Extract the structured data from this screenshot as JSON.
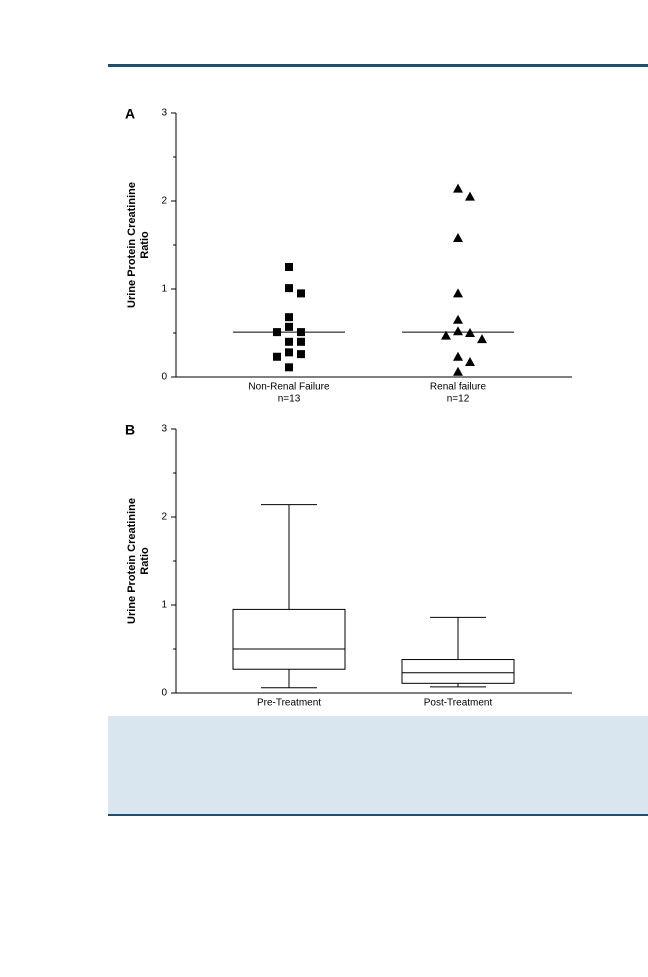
{
  "chart_data": [
    {
      "type": "scatter",
      "panel": "A",
      "ylabel_lines": [
        "Urine Protein Creatinine",
        "Ratio"
      ],
      "categories": [
        "Non-Renal Failure",
        "Renal failure"
      ],
      "category_notes": [
        "n=13",
        "n=12"
      ],
      "series": [
        {
          "marker": "square",
          "color": "#000000",
          "values": [
            1.25,
            1.01,
            0.95,
            0.68,
            0.57,
            0.51,
            0.51,
            0.4,
            0.4,
            0.28,
            0.26,
            0.23,
            0.11
          ],
          "median": 0.51
        },
        {
          "marker": "triangle",
          "color": "#000000",
          "values": [
            2.14,
            2.05,
            1.58,
            0.95,
            0.65,
            0.52,
            0.5,
            0.47,
            0.43,
            0.23,
            0.17,
            0.06
          ],
          "median": 0.51
        }
      ],
      "ylim": [
        0,
        3
      ],
      "yticks": [
        0,
        1,
        2,
        3
      ],
      "yminor_ticks": [
        0.5,
        1.5,
        2.5
      ]
    },
    {
      "type": "box",
      "panel": "B",
      "ylabel_lines": [
        "Urine Protein Creatinine",
        "Ratio"
      ],
      "categories": [
        "Pre-Treatment",
        "Post-Treatment"
      ],
      "boxes": [
        {
          "min": 0.06,
          "q1": 0.27,
          "median": 0.5,
          "q3": 0.95,
          "max": 2.14
        },
        {
          "min": 0.07,
          "q1": 0.11,
          "median": 0.23,
          "q3": 0.38,
          "max": 0.86
        }
      ],
      "ylim": [
        0,
        3
      ],
      "yticks": [
        0,
        1,
        2,
        3
      ],
      "yminor_ticks": [
        0.5,
        1.5,
        2.5
      ]
    }
  ]
}
